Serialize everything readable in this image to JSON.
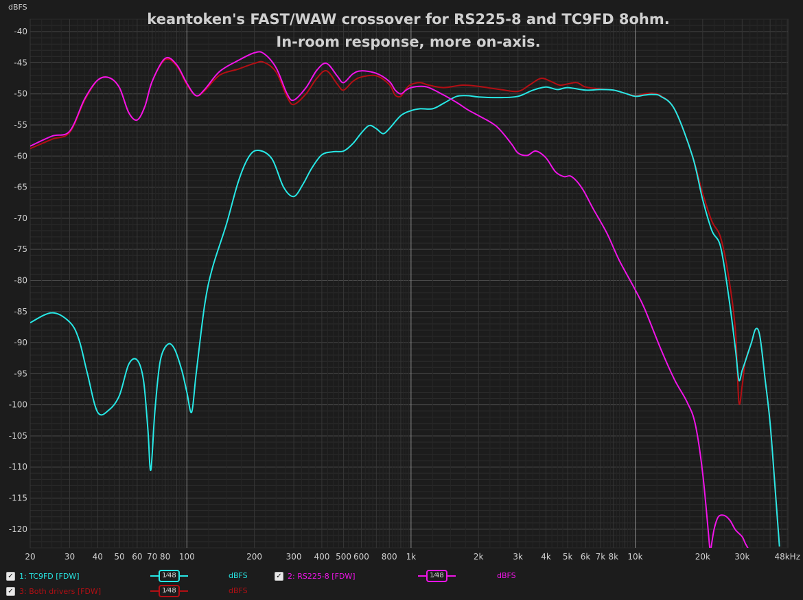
{
  "chart_data": {
    "type": "line",
    "title": "keantoken's FAST/WAW crossover for RS225-8 and TC9FD 8ohm.",
    "subtitle": "In-room response, more on-axis.",
    "ylabel": "dBFS",
    "x_scale": "log",
    "xlim": [
      20,
      48000
    ],
    "ylim": [
      -123,
      -38
    ],
    "x_ticks": [
      {
        "v": 20,
        "l": "20"
      },
      {
        "v": 30,
        "l": "30"
      },
      {
        "v": 40,
        "l": "40"
      },
      {
        "v": 50,
        "l": "50"
      },
      {
        "v": 60,
        "l": "60"
      },
      {
        "v": 70,
        "l": "70"
      },
      {
        "v": 80,
        "l": "80"
      },
      {
        "v": 100,
        "l": "100"
      },
      {
        "v": 200,
        "l": "200"
      },
      {
        "v": 300,
        "l": "300"
      },
      {
        "v": 400,
        "l": "400"
      },
      {
        "v": 500,
        "l": "500"
      },
      {
        "v": 600,
        "l": "600"
      },
      {
        "v": 800,
        "l": "800"
      },
      {
        "v": 1000,
        "l": "1k"
      },
      {
        "v": 2000,
        "l": "2k"
      },
      {
        "v": 3000,
        "l": "3k"
      },
      {
        "v": 4000,
        "l": "4k"
      },
      {
        "v": 5000,
        "l": "5k"
      },
      {
        "v": 6000,
        "l": "6k"
      },
      {
        "v": 7000,
        "l": "7k"
      },
      {
        "v": 8000,
        "l": "8k"
      },
      {
        "v": 10000,
        "l": "10k"
      },
      {
        "v": 20000,
        "l": "20k"
      },
      {
        "v": 30000,
        "l": "30k"
      },
      {
        "v": 48000,
        "l": "48kHz"
      }
    ],
    "y_ticks": [
      -40,
      -45,
      -50,
      -55,
      -60,
      -65,
      -70,
      -75,
      -80,
      -85,
      -90,
      -95,
      -100,
      -105,
      -110,
      -115,
      -120
    ],
    "grid": true,
    "series": [
      {
        "name": "3: Both drivers [FDW]",
        "color": "#b30f14",
        "points": [
          [
            20,
            -58.8
          ],
          [
            25,
            -57.3
          ],
          [
            30,
            -56.2
          ],
          [
            35,
            -51
          ],
          [
            40,
            -47.8
          ],
          [
            45,
            -47.4
          ],
          [
            50,
            -49
          ],
          [
            55,
            -53
          ],
          [
            60,
            -54.2
          ],
          [
            65,
            -52
          ],
          [
            70,
            -48
          ],
          [
            80,
            -44.5
          ],
          [
            90,
            -45.5
          ],
          [
            100,
            -48.5
          ],
          [
            110,
            -50.3
          ],
          [
            120,
            -49.5
          ],
          [
            140,
            -47
          ],
          [
            170,
            -46
          ],
          [
            200,
            -45.1
          ],
          [
            220,
            -44.9
          ],
          [
            250,
            -46.5
          ],
          [
            280,
            -50.5
          ],
          [
            300,
            -51.7
          ],
          [
            340,
            -50
          ],
          [
            380,
            -47.5
          ],
          [
            420,
            -46.3
          ],
          [
            470,
            -48.5
          ],
          [
            500,
            -49.4
          ],
          [
            550,
            -48
          ],
          [
            600,
            -47.3
          ],
          [
            700,
            -47.1
          ],
          [
            800,
            -48.5
          ],
          [
            850,
            -50.2
          ],
          [
            900,
            -50.4
          ],
          [
            950,
            -49.2
          ],
          [
            1000,
            -48.5
          ],
          [
            1100,
            -48.2
          ],
          [
            1200,
            -48.6
          ],
          [
            1400,
            -49
          ],
          [
            1700,
            -48.6
          ],
          [
            2000,
            -48.8
          ],
          [
            2500,
            -49.3
          ],
          [
            3000,
            -49.6
          ],
          [
            3400,
            -48.5
          ],
          [
            3800,
            -47.5
          ],
          [
            4200,
            -48
          ],
          [
            4600,
            -48.6
          ],
          [
            5000,
            -48.4
          ],
          [
            5500,
            -48.2
          ],
          [
            6000,
            -48.9
          ],
          [
            7000,
            -49.2
          ],
          [
            8000,
            -49.4
          ],
          [
            9000,
            -49.9
          ],
          [
            10000,
            -50.3
          ],
          [
            11000,
            -50
          ],
          [
            12000,
            -49.9
          ],
          [
            13000,
            -50.3
          ],
          [
            15000,
            -52.5
          ],
          [
            18000,
            -60
          ],
          [
            20000,
            -66
          ],
          [
            22000,
            -70.5
          ],
          [
            24000,
            -73
          ],
          [
            26000,
            -79
          ],
          [
            28000,
            -88
          ],
          [
            29000,
            -99.5
          ],
          [
            30000,
            -97
          ],
          [
            31000,
            -93
          ],
          [
            33000,
            -90
          ],
          [
            34500,
            -87.8
          ],
          [
            36000,
            -89
          ],
          [
            38000,
            -96
          ],
          [
            40000,
            -103
          ],
          [
            42000,
            -113
          ],
          [
            44000,
            -122.8
          ]
        ]
      },
      {
        "name": "1: TC9FD [FDW]",
        "color": "#27e8e6",
        "points": [
          [
            20,
            -86.8
          ],
          [
            25,
            -85.2
          ],
          [
            30,
            -86.7
          ],
          [
            33,
            -89.5
          ],
          [
            36,
            -95
          ],
          [
            40,
            -101.2
          ],
          [
            45,
            -100.8
          ],
          [
            50,
            -98.5
          ],
          [
            55,
            -93.5
          ],
          [
            60,
            -92.8
          ],
          [
            64,
            -96
          ],
          [
            67,
            -104
          ],
          [
            69,
            -110.5
          ],
          [
            72,
            -101
          ],
          [
            76,
            -93
          ],
          [
            82,
            -90.3
          ],
          [
            88,
            -91
          ],
          [
            95,
            -94.5
          ],
          [
            100,
            -98
          ],
          [
            105,
            -101.2
          ],
          [
            110,
            -95
          ],
          [
            120,
            -84
          ],
          [
            130,
            -78
          ],
          [
            150,
            -71
          ],
          [
            170,
            -64
          ],
          [
            190,
            -60
          ],
          [
            210,
            -59.1
          ],
          [
            240,
            -60.5
          ],
          [
            270,
            -65
          ],
          [
            300,
            -66.5
          ],
          [
            330,
            -64.5
          ],
          [
            360,
            -62
          ],
          [
            400,
            -59.8
          ],
          [
            450,
            -59.3
          ],
          [
            500,
            -59.2
          ],
          [
            550,
            -58
          ],
          [
            600,
            -56.3
          ],
          [
            650,
            -55.1
          ],
          [
            700,
            -55.6
          ],
          [
            750,
            -56.4
          ],
          [
            800,
            -55.6
          ],
          [
            900,
            -53.5
          ],
          [
            1000,
            -52.7
          ],
          [
            1100,
            -52.4
          ],
          [
            1250,
            -52.4
          ],
          [
            1400,
            -51.5
          ],
          [
            1600,
            -50.4
          ],
          [
            1800,
            -50.3
          ],
          [
            2000,
            -50.5
          ],
          [
            2500,
            -50.6
          ],
          [
            3000,
            -50.4
          ],
          [
            3500,
            -49.4
          ],
          [
            4000,
            -48.9
          ],
          [
            4500,
            -49.3
          ],
          [
            5000,
            -49
          ],
          [
            6000,
            -49.4
          ],
          [
            7000,
            -49.3
          ],
          [
            8000,
            -49.4
          ],
          [
            9000,
            -49.9
          ],
          [
            10000,
            -50.4
          ],
          [
            11000,
            -50.2
          ],
          [
            12000,
            -50.1
          ],
          [
            13000,
            -50.4
          ],
          [
            15000,
            -52.5
          ],
          [
            18000,
            -60
          ],
          [
            20000,
            -67
          ],
          [
            22000,
            -72
          ],
          [
            24000,
            -74.5
          ],
          [
            26000,
            -82
          ],
          [
            28000,
            -91
          ],
          [
            29000,
            -96
          ],
          [
            30000,
            -94.5
          ],
          [
            31000,
            -93
          ],
          [
            33000,
            -90
          ],
          [
            34500,
            -87.8
          ],
          [
            36000,
            -89
          ],
          [
            38000,
            -96
          ],
          [
            40000,
            -103
          ],
          [
            42000,
            -113
          ],
          [
            44000,
            -122.8
          ]
        ]
      },
      {
        "name": "2: RS225-8 [FDW]",
        "color": "#f014e8",
        "points": [
          [
            20,
            -58.4
          ],
          [
            25,
            -56.8
          ],
          [
            30,
            -56
          ],
          [
            35,
            -50.8
          ],
          [
            40,
            -47.8
          ],
          [
            45,
            -47.4
          ],
          [
            50,
            -49
          ],
          [
            55,
            -53
          ],
          [
            60,
            -54.2
          ],
          [
            65,
            -52
          ],
          [
            70,
            -48
          ],
          [
            80,
            -44.3
          ],
          [
            90,
            -45.3
          ],
          [
            100,
            -48.3
          ],
          [
            110,
            -50.3
          ],
          [
            120,
            -49.3
          ],
          [
            140,
            -46.4
          ],
          [
            170,
            -44.6
          ],
          [
            200,
            -43.4
          ],
          [
            220,
            -43.5
          ],
          [
            250,
            -45.8
          ],
          [
            280,
            -50
          ],
          [
            300,
            -51
          ],
          [
            340,
            -49
          ],
          [
            380,
            -46.2
          ],
          [
            420,
            -45.1
          ],
          [
            470,
            -47.2
          ],
          [
            500,
            -48.2
          ],
          [
            550,
            -46.8
          ],
          [
            600,
            -46.3
          ],
          [
            700,
            -46.7
          ],
          [
            800,
            -48
          ],
          [
            850,
            -49.4
          ],
          [
            900,
            -50
          ],
          [
            950,
            -49.4
          ],
          [
            1000,
            -49
          ],
          [
            1100,
            -48.8
          ],
          [
            1200,
            -49
          ],
          [
            1400,
            -50.2
          ],
          [
            1600,
            -51.4
          ],
          [
            1800,
            -52.6
          ],
          [
            2000,
            -53.5
          ],
          [
            2400,
            -55.2
          ],
          [
            2800,
            -58
          ],
          [
            3000,
            -59.5
          ],
          [
            3300,
            -59.9
          ],
          [
            3600,
            -59.2
          ],
          [
            4000,
            -60.3
          ],
          [
            4400,
            -62.5
          ],
          [
            4800,
            -63.3
          ],
          [
            5200,
            -63.3
          ],
          [
            5800,
            -65.2
          ],
          [
            6500,
            -68.5
          ],
          [
            7500,
            -72.5
          ],
          [
            8500,
            -76.8
          ],
          [
            10000,
            -81.5
          ],
          [
            11000,
            -84.5
          ],
          [
            13000,
            -91
          ],
          [
            15000,
            -96
          ],
          [
            17000,
            -99.5
          ],
          [
            18500,
            -103
          ],
          [
            20000,
            -111
          ],
          [
            21500,
            -123
          ]
        ]
      },
      {
        "name": "2: RS225-8 [FDW]",
        "color": "#f014e8",
        "points": [
          [
            21800,
            -123
          ],
          [
            22500,
            -120
          ],
          [
            23500,
            -118
          ],
          [
            25000,
            -117.8
          ],
          [
            26500,
            -118.6
          ],
          [
            28000,
            -120.1
          ],
          [
            30000,
            -121.2
          ],
          [
            31000,
            -122.3
          ],
          [
            32500,
            -123.6
          ]
        ]
      }
    ]
  },
  "legend": [
    {
      "name": "1: TC9FD [FDW]",
      "smooth": "1⁄48",
      "unit": "dBFS",
      "color": "#27e8e6"
    },
    {
      "name": "2: RS225-8 [FDW]",
      "smooth": "1⁄48",
      "unit": "dBFS",
      "color": "#f014e8"
    },
    {
      "name": "3: Both drivers [FDW]",
      "smooth": "1⁄48",
      "unit": "dBFS",
      "color": "#b30f14"
    }
  ],
  "check": "✓"
}
